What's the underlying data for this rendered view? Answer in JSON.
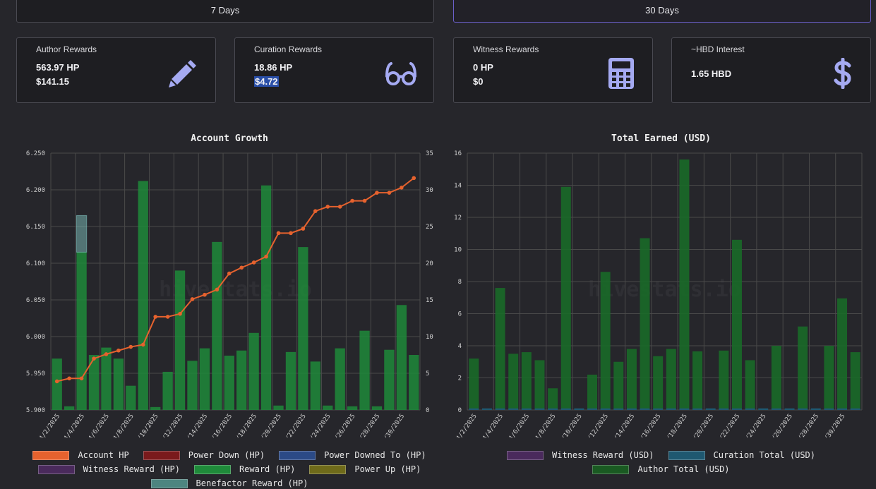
{
  "tabs": [
    {
      "label": "7 Days",
      "active": false
    },
    {
      "label": "30 Days",
      "active": true
    }
  ],
  "cards": [
    {
      "title": "Author Rewards",
      "line1": "563.97 HP",
      "line2": "$141.15",
      "icon": "pencil-icon"
    },
    {
      "title": "Curation Rewards",
      "line1": "18.86 HP",
      "line2": "$4.72",
      "icon": "glasses-icon"
    },
    {
      "title": "Witness Rewards",
      "line1": "0 HP",
      "line2": "$0",
      "icon": "calculator-icon"
    },
    {
      "title": "~HBD Interest",
      "line1": "1.65 HBD",
      "line2": "",
      "icon": "dollar-icon"
    }
  ],
  "colors": {
    "accent": "#a5aaf2",
    "account_hp": "#e6622e",
    "reward": "#1f8a3a",
    "benefactor": "#8ad4cf",
    "grid": "#4a4a4a"
  },
  "watermark": "hivestats.io",
  "chart_data": [
    {
      "type": "bar",
      "title": "Account Growth",
      "categories": [
        "4/2/2025",
        "4/3/2025",
        "4/4/2025",
        "4/5/2025",
        "4/6/2025",
        "4/7/2025",
        "4/8/2025",
        "4/9/2025",
        "4/10/2025",
        "4/11/2025",
        "4/12/2025",
        "4/13/2025",
        "4/14/2025",
        "4/15/2025",
        "4/16/2025",
        "4/17/2025",
        "4/18/2025",
        "4/19/2025",
        "4/20/2025",
        "4/21/2025",
        "4/22/2025",
        "4/23/2025",
        "4/24/2025",
        "4/25/2025",
        "4/26/2025",
        "4/27/2025",
        "4/28/2025",
        "4/29/2025",
        "4/30/2025",
        "5/1/2025"
      ],
      "tick_labels": [
        "4/2/2025",
        "4/4/2025",
        "4/6/2025",
        "4/8/2025",
        "4/10/2025",
        "4/12/2025",
        "4/14/2025",
        "4/16/2025",
        "4/18/2025",
        "4/20/2025",
        "4/22/2025",
        "4/24/2025",
        "4/26/2025",
        "4/28/2025",
        "4/30/2025"
      ],
      "ylim_left": [
        5.9,
        6.25
      ],
      "yticks_left": [
        "6.250",
        "6.200",
        "6.150",
        "6.100",
        "6.050",
        "6.000",
        "5.950",
        "5.900"
      ],
      "ylim_right": [
        0,
        35
      ],
      "yticks_right": [
        "35",
        "30",
        "25",
        "20",
        "15",
        "10",
        "5",
        "0"
      ],
      "series": [
        {
          "name": "Account HP",
          "type": "line",
          "axis": "left",
          "values": [
            5.939,
            5.943,
            5.943,
            5.97,
            5.976,
            5.981,
            5.986,
            5.989,
            6.027,
            6.027,
            6.031,
            6.051,
            6.057,
            6.064,
            6.086,
            6.094,
            6.101,
            6.109,
            6.141,
            6.141,
            6.147,
            6.171,
            6.177,
            6.177,
            6.185,
            6.185,
            6.196,
            6.196,
            6.203,
            6.216
          ]
        },
        {
          "name": "Power Down (HP)",
          "type": "bar",
          "axis": "right",
          "values": [
            0,
            0,
            0,
            0,
            0,
            0,
            0,
            0,
            0,
            0,
            0,
            0,
            0,
            0,
            0,
            0,
            0,
            0,
            0,
            0,
            0,
            0,
            0,
            0,
            0,
            0,
            0,
            0,
            0,
            0
          ]
        },
        {
          "name": "Power Downed To (HP)",
          "type": "bar",
          "axis": "right",
          "values": [
            0,
            0,
            0,
            0,
            0,
            0,
            0,
            0,
            0,
            0,
            0,
            0,
            0,
            0,
            0,
            0,
            0,
            0,
            0,
            0,
            0,
            0,
            0,
            0,
            0,
            0,
            0,
            0,
            0,
            0
          ]
        },
        {
          "name": "Witness Reward (HP)",
          "type": "bar",
          "axis": "right",
          "values": [
            0,
            0,
            0,
            0,
            0,
            0,
            0,
            0,
            0,
            0,
            0,
            0,
            0,
            0,
            0,
            0,
            0,
            0,
            0,
            0,
            0,
            0,
            0,
            0,
            0,
            0,
            0,
            0,
            0,
            0
          ]
        },
        {
          "name": "Reward (HP)",
          "type": "bar",
          "axis": "right",
          "values": [
            7,
            0.5,
            21.5,
            7.5,
            8.5,
            7,
            3.3,
            31.2,
            0.4,
            5.2,
            19,
            6.7,
            8.4,
            22.9,
            7.4,
            8.1,
            10.5,
            30.6,
            0.6,
            7.9,
            22.2,
            6.6,
            0.6,
            8.4,
            0.5,
            10.8,
            0.5,
            8.2,
            14.3,
            7.5
          ]
        },
        {
          "name": "Power Up (HP)",
          "type": "bar",
          "axis": "right",
          "values": [
            0,
            0,
            0,
            0,
            0,
            0,
            0,
            0,
            0,
            0,
            0,
            0,
            0,
            0,
            0,
            0,
            0,
            0,
            0,
            0,
            0,
            0,
            0,
            0,
            0,
            0,
            0,
            0,
            0,
            0
          ]
        },
        {
          "name": "Benefactor Reward (HP)",
          "type": "bar",
          "axis": "right",
          "values": [
            0,
            0,
            5,
            0,
            0,
            0,
            0,
            0,
            0,
            0,
            0,
            0,
            0,
            0,
            0,
            0,
            0,
            0,
            0,
            0,
            0,
            0,
            0,
            0,
            0,
            0,
            0,
            0,
            0,
            0
          ]
        }
      ]
    },
    {
      "type": "bar",
      "title": "Total Earned (USD)",
      "categories": [
        "4/2/2025",
        "4/3/2025",
        "4/4/2025",
        "4/5/2025",
        "4/6/2025",
        "4/7/2025",
        "4/8/2025",
        "4/9/2025",
        "4/10/2025",
        "4/11/2025",
        "4/12/2025",
        "4/13/2025",
        "4/14/2025",
        "4/15/2025",
        "4/16/2025",
        "4/17/2025",
        "4/18/2025",
        "4/19/2025",
        "4/20/2025",
        "4/21/2025",
        "4/22/2025",
        "4/23/2025",
        "4/24/2025",
        "4/25/2025",
        "4/26/2025",
        "4/27/2025",
        "4/28/2025",
        "4/29/2025",
        "4/30/2025",
        "5/1/2025"
      ],
      "tick_labels": [
        "4/2/2025",
        "4/4/2025",
        "4/6/2025",
        "4/8/2025",
        "4/10/2025",
        "4/12/2025",
        "4/14/2025",
        "4/16/2025",
        "4/18/2025",
        "4/20/2025",
        "4/22/2025",
        "4/24/2025",
        "4/26/2025",
        "4/28/2025",
        "4/30/2025"
      ],
      "ylim": [
        0,
        16
      ],
      "yticks": [
        "16",
        "14",
        "12",
        "10",
        "8",
        "6",
        "4",
        "2",
        "0"
      ],
      "series": [
        {
          "name": "Witness Reward (USD)",
          "values": [
            0,
            0,
            0,
            0,
            0,
            0,
            0,
            0,
            0,
            0,
            0,
            0,
            0,
            0,
            0,
            0,
            0,
            0,
            0,
            0,
            0,
            0,
            0,
            0,
            0,
            0,
            0,
            0,
            0,
            0
          ]
        },
        {
          "name": "Curation Total (USD)",
          "values": [
            0.1,
            0.1,
            0.1,
            0.1,
            0.1,
            0.1,
            0.1,
            0.1,
            0.1,
            0.1,
            0.1,
            0.1,
            0.1,
            0.1,
            0.1,
            0.1,
            0.1,
            0.1,
            0.1,
            0.1,
            0.1,
            0.1,
            0.1,
            0.1,
            0.1,
            0.1,
            0.1,
            0.1,
            0.1,
            0.1
          ]
        },
        {
          "name": "Author Total (USD)",
          "values": [
            3.2,
            0,
            7.6,
            3.5,
            3.6,
            3.1,
            1.35,
            13.9,
            0,
            2.2,
            8.6,
            3.0,
            3.8,
            10.7,
            3.35,
            3.8,
            15.6,
            3.65,
            0,
            3.7,
            10.6,
            3.1,
            0,
            4.0,
            0,
            5.2,
            0,
            4.0,
            6.95,
            3.6
          ]
        }
      ]
    }
  ],
  "legend_left": [
    "Account HP",
    "Power Down (HP)",
    "Power Downed To (HP)",
    "Witness Reward (HP)",
    "Reward (HP)",
    "Power Up (HP)",
    "Benefactor Reward (HP)"
  ],
  "legend_right": [
    "Witness Reward (USD)",
    "Curation Total (USD)",
    "Author Total (USD)"
  ]
}
